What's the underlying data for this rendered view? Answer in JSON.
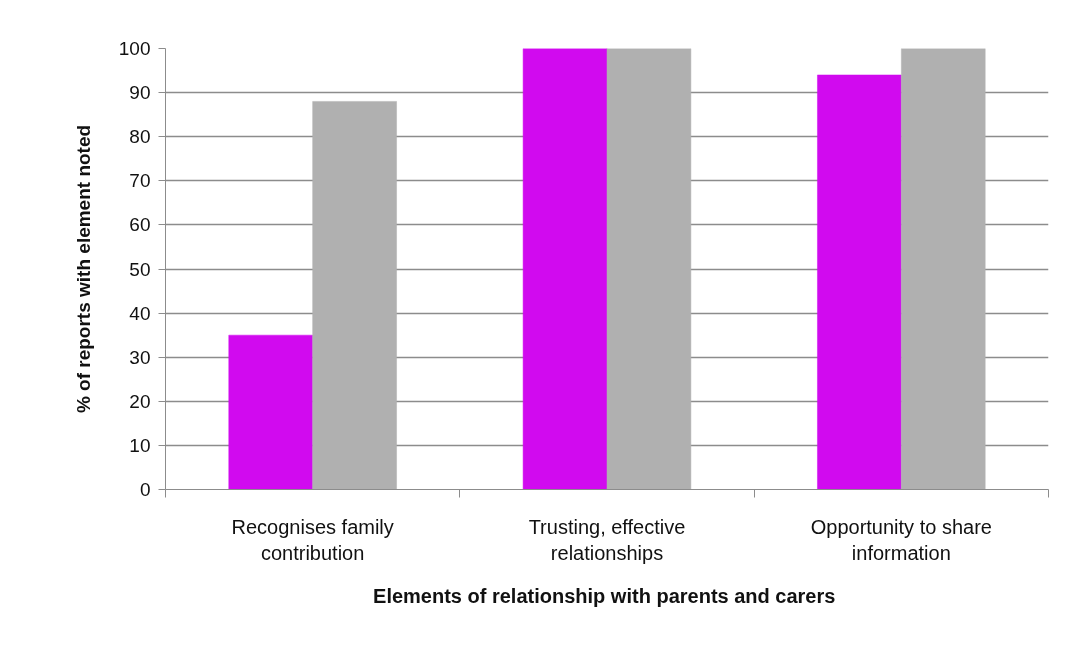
{
  "chart_data": {
    "type": "bar",
    "xlabel": "Elements  of relationship with parents and carers",
    "ylabel": "% of reports with element noted",
    "categories": [
      "Recognises family contribution",
      "Trusting, effective relationships",
      "Opportunity to share information"
    ],
    "series": [
      {
        "color": "#d10aef",
        "values": [
          35,
          100,
          94
        ]
      },
      {
        "color": "#b0b0b0",
        "values": [
          88,
          100,
          100
        ]
      }
    ],
    "ylim": [
      0,
      100
    ],
    "yticks": [
      0,
      10,
      20,
      30,
      40,
      50,
      60,
      70,
      80,
      90,
      100
    ],
    "grid": "y"
  }
}
